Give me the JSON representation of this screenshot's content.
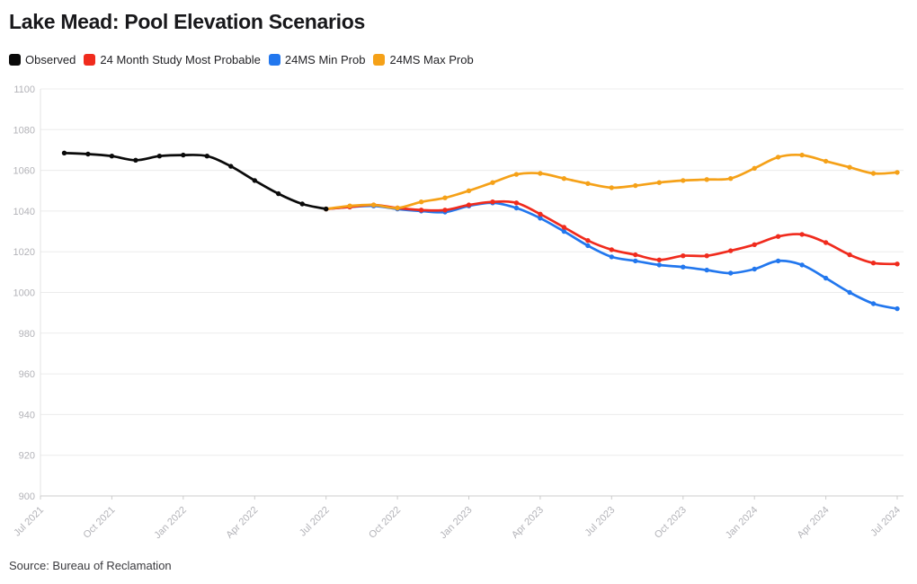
{
  "title": "Lake Mead: Pool Elevation Scenarios",
  "source": "Source: Bureau of Reclamation",
  "legend": [
    {
      "label": "Observed",
      "color": "#0a0a0a"
    },
    {
      "label": "24 Month Study Most Probable",
      "color": "#f02b1d"
    },
    {
      "label": "24MS Min Prob",
      "color": "#2277ee"
    },
    {
      "label": "24MS Max Prob",
      "color": "#f5a118"
    }
  ],
  "chart_data": {
    "type": "line",
    "title": "Lake Mead: Pool Elevation Scenarios",
    "x_axis": {
      "tick_labels": [
        "Jul 2021",
        "Oct 2021",
        "Jan 2022",
        "Apr 2022",
        "Jul 2022",
        "Oct 2022",
        "Jan 2023",
        "Apr 2023",
        "Jul 2023",
        "Oct 2023",
        "Jan 2024",
        "Apr 2024",
        "Jul 2024"
      ],
      "months_span": 36
    },
    "y_axis": {
      "ticks": [
        1100,
        1080,
        1060,
        1040,
        1020,
        1000,
        980,
        960,
        940,
        920,
        900
      ],
      "ylim": [
        900,
        1100
      ]
    },
    "grid": true,
    "legend_position": "top",
    "series": [
      {
        "name": "24MS Min Prob",
        "color": "#2277ee",
        "start_month_index": 12,
        "values": [
          1041,
          1042,
          1042.5,
          1041,
          1040,
          1039.5,
          1042.5,
          1044,
          1041.5,
          1036.5,
          1030,
          1023,
          1017.5,
          1015.5,
          1013.5,
          1012.5,
          1011,
          1009.5,
          1011.5,
          1015.5,
          1013.5,
          1007,
          1000,
          994.5,
          992
        ]
      },
      {
        "name": "24 Month Study Most Probable",
        "color": "#f02b1d",
        "start_month_index": 12,
        "values": [
          1041,
          1042,
          1043,
          1041.5,
          1040.5,
          1040.5,
          1043,
          1044.5,
          1044,
          1038.5,
          1032,
          1025.5,
          1021,
          1018.5,
          1016,
          1018,
          1018,
          1020.5,
          1023.5,
          1027.5,
          1028.5,
          1024.5,
          1018.5,
          1014.5,
          1014
        ]
      },
      {
        "name": "24MS Max Prob",
        "color": "#f5a118",
        "start_month_index": 12,
        "values": [
          1041,
          1042.5,
          1043,
          1041.5,
          1044.5,
          1046.5,
          1050,
          1054,
          1058,
          1058.5,
          1056,
          1053.5,
          1051.5,
          1052.5,
          1054,
          1055,
          1055.5,
          1056,
          1061,
          1066.5,
          1067.5,
          1064.5,
          1061.5,
          1058.5,
          1059
        ]
      },
      {
        "name": "Observed",
        "color": "#0a0a0a",
        "start_month_index": 1,
        "values": [
          1068.5,
          1068,
          1067,
          1065,
          1067,
          1067.5,
          1067,
          1062,
          1055,
          1048.5,
          1043.5,
          1041
        ]
      }
    ]
  }
}
